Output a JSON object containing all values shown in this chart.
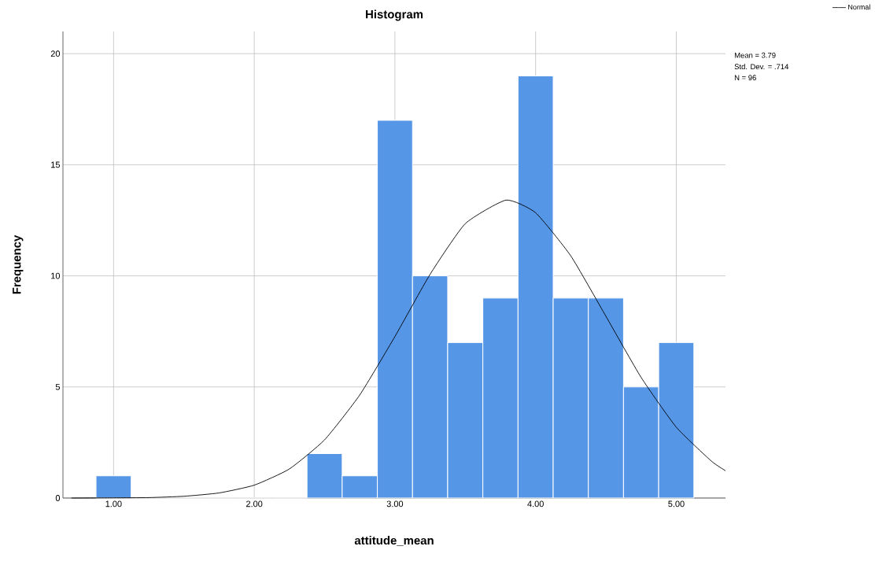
{
  "chart_data": {
    "type": "histogram",
    "title": "Histogram",
    "xlabel": "attitude_mean",
    "ylabel": "Frequency",
    "series": [
      {
        "color": "#5596e6",
        "bins": [
          0.875,
          1.125,
          1.375,
          1.625,
          1.875,
          2.125,
          2.375,
          2.625,
          2.875,
          3.125,
          3.375,
          3.625,
          3.875,
          4.125,
          4.375,
          4.625,
          4.875,
          5.125
        ],
        "values": [
          1,
          0,
          0,
          0,
          0,
          0,
          2,
          1,
          17,
          10,
          7,
          9,
          19,
          9,
          9,
          5,
          7
        ]
      },
      {
        "type": "line",
        "name": "Normal",
        "color": "#000000",
        "x": [
          0.7,
          1.0,
          1.25,
          1.5,
          1.75,
          2.0,
          2.25,
          2.5,
          2.75,
          3.0,
          3.25,
          3.5,
          3.79,
          4.0,
          4.25,
          4.5,
          4.75,
          5.0,
          5.25,
          5.35
        ],
        "values": [
          0.0,
          0.01,
          0.02,
          0.08,
          0.23,
          0.58,
          1.31,
          2.62,
          4.64,
          7.27,
          10.07,
          12.35,
          13.41,
          12.84,
          10.9,
          8.18,
          5.43,
          3.19,
          1.66,
          1.23
        ]
      }
    ],
    "xlim": [
      0.64,
      5.35
    ],
    "ylim": [
      0,
      21
    ],
    "xticks": [
      {
        "value": 1,
        "label": "1.00"
      },
      {
        "value": 2,
        "label": "2.00"
      },
      {
        "value": 3,
        "label": "3.00"
      },
      {
        "value": 4,
        "label": "4.00"
      },
      {
        "value": 5,
        "label": "5.00"
      }
    ],
    "yticks": [
      0,
      5,
      10,
      15,
      20
    ],
    "grid": true,
    "legend": "top right",
    "annotations": [
      "Mean = 3.79",
      "Std. Dev. = .714",
      "N = 96"
    ]
  }
}
